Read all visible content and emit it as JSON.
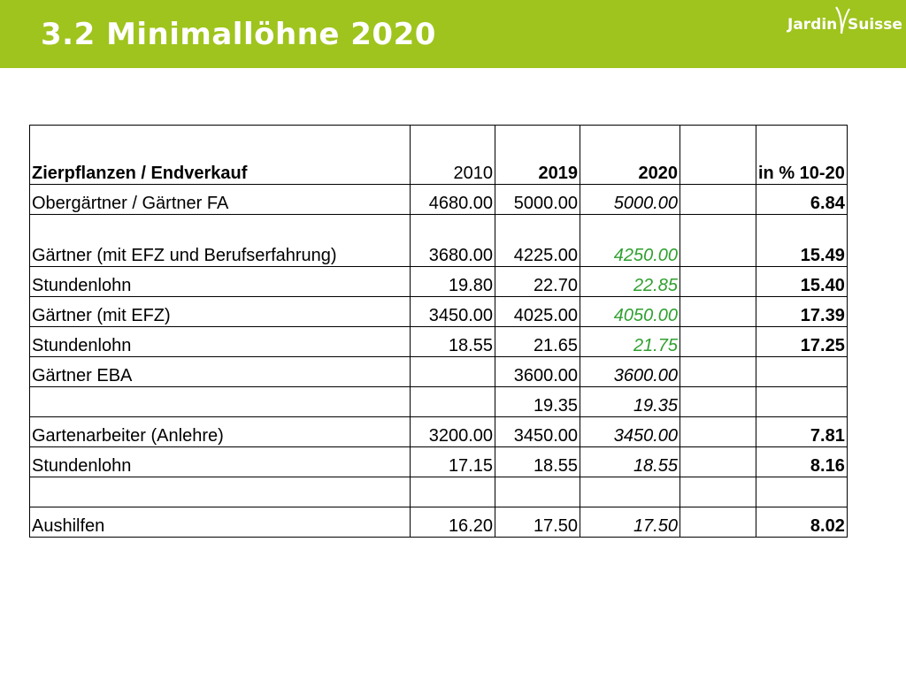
{
  "title": "3.2 Minimallöhne 2020",
  "logo": {
    "left": "Jardin",
    "right": "Suisse",
    "icon": "leaf-swoosh-icon"
  },
  "colors": {
    "header": "#9fc41d",
    "green_value": "#30a030"
  },
  "table": {
    "headers": [
      "Zierpflanzen / Endverkauf",
      "2010",
      "2019",
      "2020",
      "",
      "in % 10-20"
    ],
    "rows": [
      {
        "label": "Obergärtner / Gärtner FA",
        "v2010": "4680.00",
        "v2019": "5000.00",
        "v2020": "5000.00",
        "extra": "",
        "pct": "6.84"
      },
      {
        "label": "Gärtner (mit EFZ und Berufserfahrung)",
        "v2010": "3680.00",
        "v2019": "4225.00",
        "v2020": "4250.00",
        "extra": "",
        "pct": "15.49"
      },
      {
        "label": "Stundenlohn",
        "v2010": "19.80",
        "v2019": "22.70",
        "v2020": "22.85",
        "extra": "",
        "pct": "15.40"
      },
      {
        "label": "Gärtner (mit EFZ)",
        "v2010": "3450.00",
        "v2019": "4025.00",
        "v2020": "4050.00",
        "extra": "",
        "pct": "17.39"
      },
      {
        "label": "Stundenlohn",
        "v2010": "18.55",
        "v2019": "21.65",
        "v2020": "21.75",
        "extra": "",
        "pct": "17.25"
      },
      {
        "label": "Gärtner EBA",
        "v2010": "",
        "v2019": "3600.00",
        "v2020": "3600.00",
        "extra": "",
        "pct": ""
      },
      {
        "label": "",
        "v2010": "",
        "v2019": "19.35",
        "v2020": "19.35",
        "extra": "",
        "pct": ""
      },
      {
        "label": "Gartenarbeiter (Anlehre)",
        "v2010": "3200.00",
        "v2019": "3450.00",
        "v2020": "3450.00",
        "extra": "",
        "pct": "7.81"
      },
      {
        "label": "Stundenlohn",
        "v2010": "17.15",
        "v2019": "18.55",
        "v2020": "18.55",
        "extra": "",
        "pct": "8.16"
      },
      {
        "label": "",
        "v2010": "",
        "v2019": "",
        "v2020": "",
        "extra": "",
        "pct": ""
      },
      {
        "label": "Aushilfen",
        "v2010": "16.20",
        "v2019": "17.50",
        "v2020": "17.50",
        "extra": "",
        "pct": "8.02"
      }
    ]
  }
}
